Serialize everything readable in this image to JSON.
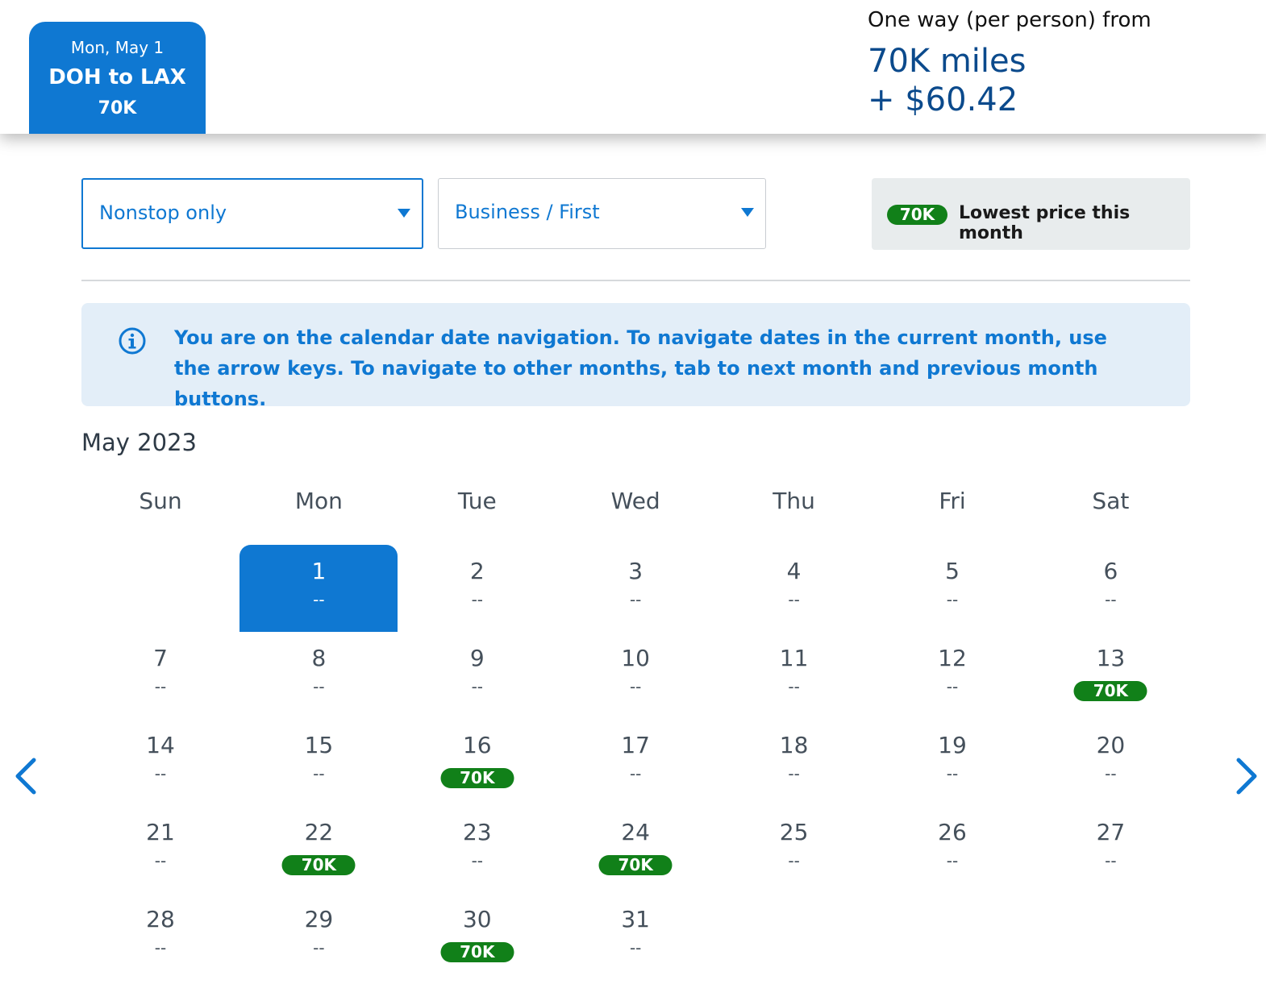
{
  "header": {
    "flight_tab": {
      "date": "Mon, May 1",
      "route": "DOH to LAX",
      "price": "70K"
    },
    "fare": {
      "label": "One way (per person) from",
      "miles": "70K miles",
      "cash": "+ $60.42"
    }
  },
  "filters": {
    "stops": {
      "value": "Nonstop only"
    },
    "cabin": {
      "value": "Business / First"
    },
    "legend": {
      "badge": "70K",
      "label": "Lowest price this month"
    }
  },
  "info_banner": {
    "text": "You are on the calendar date navigation. To navigate dates in the current month, use the arrow keys. To navigate to other months, tab to next month and previous month buttons."
  },
  "calendar": {
    "month_label": "May 2023",
    "weekdays": [
      "Sun",
      "Mon",
      "Tue",
      "Wed",
      "Thu",
      "Fri",
      "Sat"
    ],
    "first_weekday_index": 1,
    "selected_day": "1",
    "days": [
      {
        "day": "1",
        "price": "--"
      },
      {
        "day": "2",
        "price": "--"
      },
      {
        "day": "3",
        "price": "--"
      },
      {
        "day": "4",
        "price": "--"
      },
      {
        "day": "5",
        "price": "--"
      },
      {
        "day": "6",
        "price": "--"
      },
      {
        "day": "7",
        "price": "--"
      },
      {
        "day": "8",
        "price": "--"
      },
      {
        "day": "9",
        "price": "--"
      },
      {
        "day": "10",
        "price": "--"
      },
      {
        "day": "11",
        "price": "--"
      },
      {
        "day": "12",
        "price": "--"
      },
      {
        "day": "13",
        "price": "70K"
      },
      {
        "day": "14",
        "price": "--"
      },
      {
        "day": "15",
        "price": "--"
      },
      {
        "day": "16",
        "price": "70K"
      },
      {
        "day": "17",
        "price": "--"
      },
      {
        "day": "18",
        "price": "--"
      },
      {
        "day": "19",
        "price": "--"
      },
      {
        "day": "20",
        "price": "--"
      },
      {
        "day": "21",
        "price": "--"
      },
      {
        "day": "22",
        "price": "70K"
      },
      {
        "day": "23",
        "price": "--"
      },
      {
        "day": "24",
        "price": "70K"
      },
      {
        "day": "25",
        "price": "--"
      },
      {
        "day": "26",
        "price": "--"
      },
      {
        "day": "27",
        "price": "--"
      },
      {
        "day": "28",
        "price": "--"
      },
      {
        "day": "29",
        "price": "--"
      },
      {
        "day": "30",
        "price": "70K"
      },
      {
        "day": "31",
        "price": "--"
      }
    ]
  },
  "icons": {
    "info": "info-circle-icon",
    "prev": "chevron-left-icon",
    "next": "chevron-right-icon",
    "caret": "caret-down-icon"
  },
  "colors": {
    "primary_blue": "#0f78d2",
    "navy": "#0b4a8c",
    "price_green": "#118019",
    "banner_bg": "#e3eef8",
    "legend_bg": "#e8eced"
  }
}
